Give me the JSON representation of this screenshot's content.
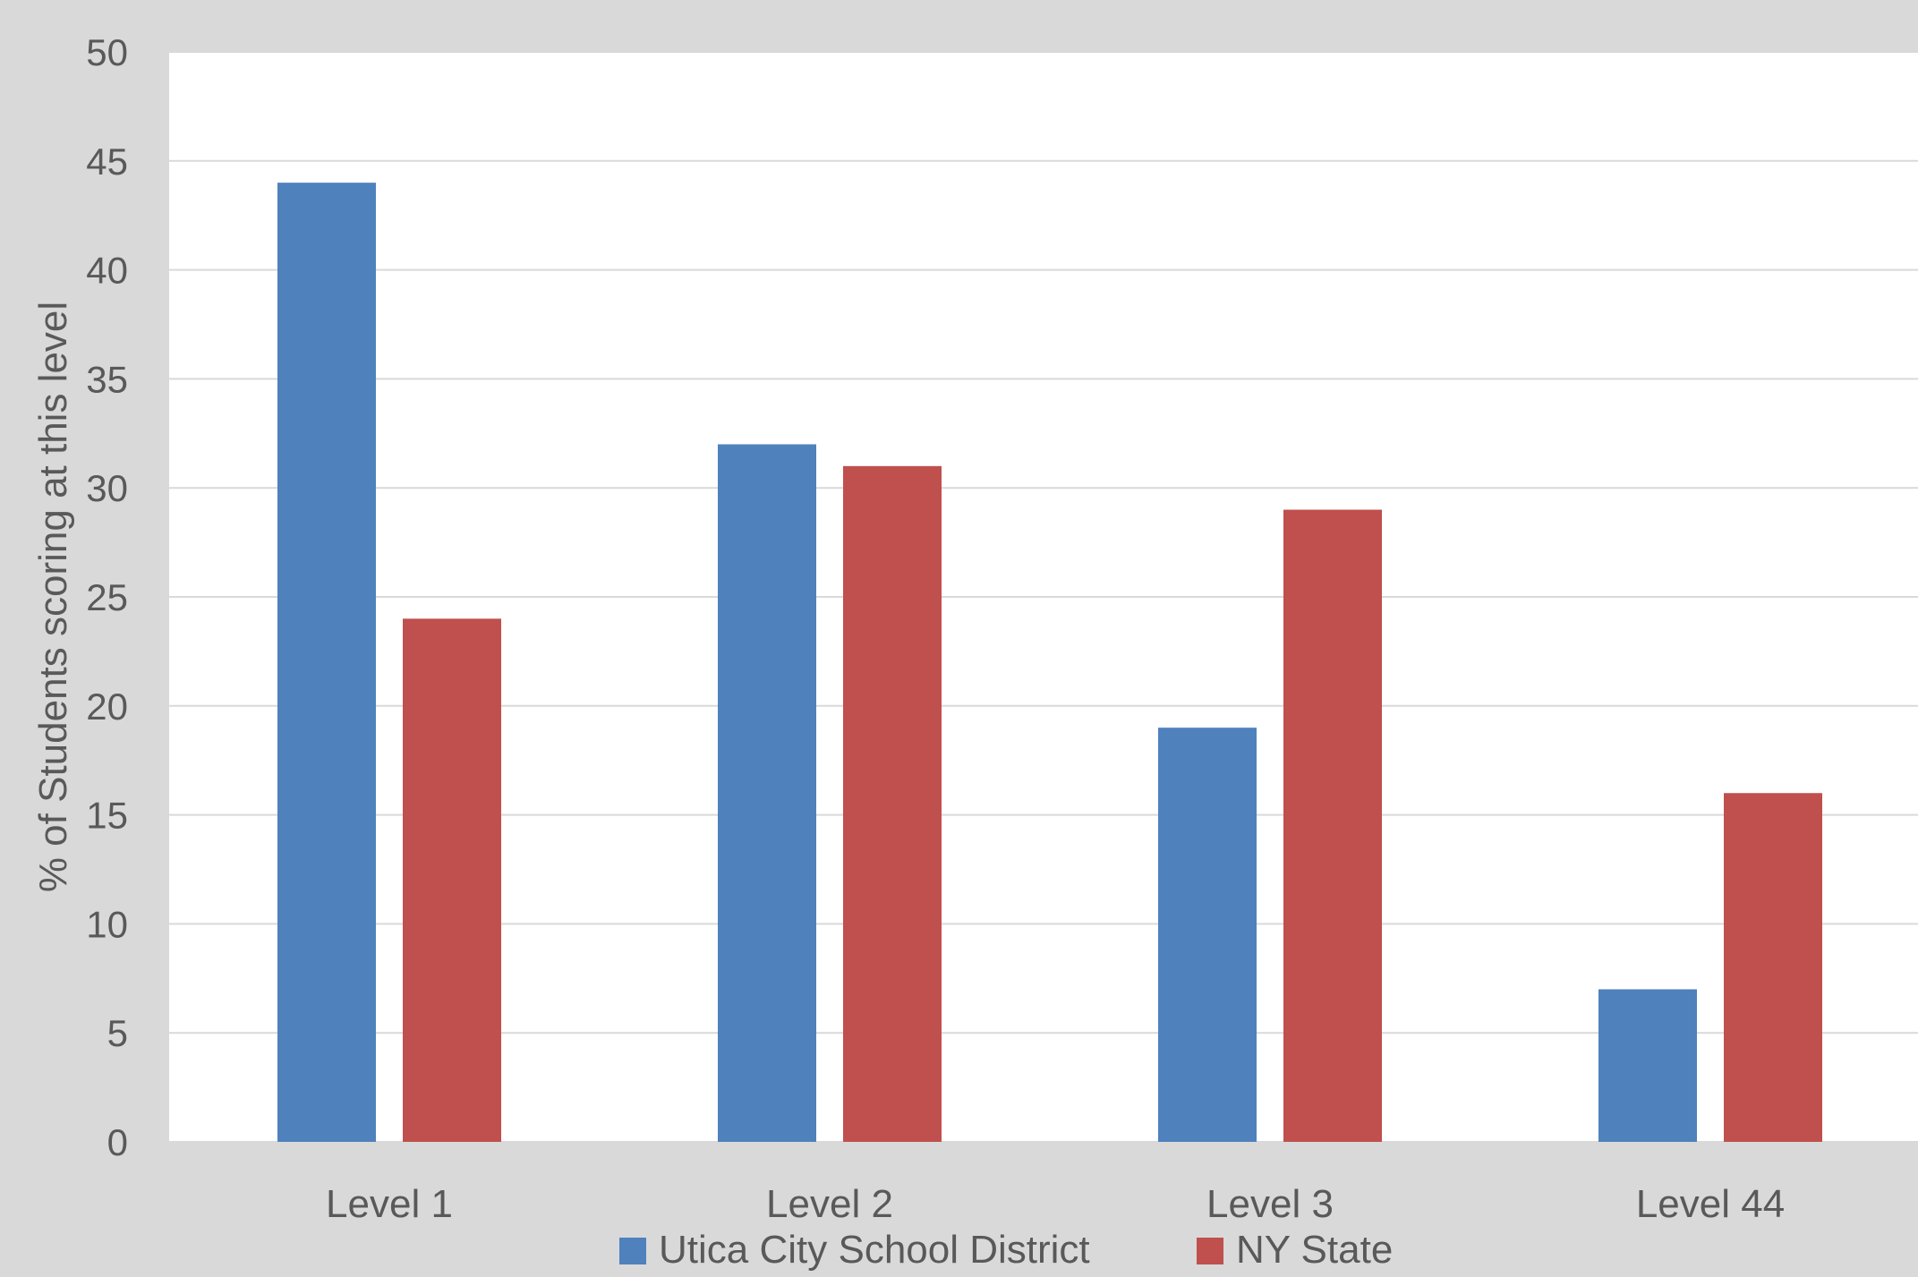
{
  "chart_data": {
    "type": "bar",
    "title": "",
    "xlabel": "",
    "ylabel": "% of Students scoring at this level",
    "categories": [
      "Level 1",
      "Level 2",
      "Level 3",
      "Level 44"
    ],
    "series": [
      {
        "name": "Utica City School District",
        "values": [
          44,
          32,
          19,
          7
        ],
        "color": "#4f81bd"
      },
      {
        "name": "NY State",
        "values": [
          24,
          31,
          29,
          16
        ],
        "color": "#c0504d"
      }
    ],
    "ylim": [
      0,
      50
    ],
    "yticks": [
      0,
      5,
      10,
      15,
      20,
      25,
      30,
      35,
      40,
      45,
      50
    ],
    "grid": true,
    "legend": "bottom",
    "background_color": "#d9d9d9",
    "plot_background_color": "#ffffff",
    "gridline_color": "#d9d9d9"
  }
}
